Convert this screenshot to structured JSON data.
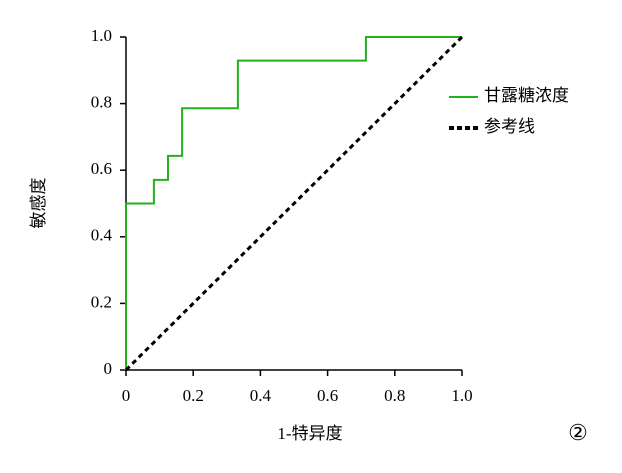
{
  "chart_data": {
    "type": "line",
    "xlabel": "1-特异度",
    "ylabel": "敏感度",
    "annotation": "②",
    "xlim": [
      0,
      1
    ],
    "ylim": [
      0,
      1
    ],
    "xticks": [
      0,
      0.2,
      0.4,
      0.6,
      0.8,
      {
        "value": 1,
        "label": "1.0"
      }
    ],
    "yticks": [
      0,
      0.2,
      0.4,
      0.6,
      0.8,
      {
        "value": 1,
        "label": "1.0"
      }
    ],
    "legend": "right",
    "series": [
      {
        "name": "甘露糖浓度",
        "color": "#22b01c",
        "style": "solid",
        "x": [
          0,
          0,
          0.083,
          0.083,
          0.125,
          0.125,
          0.167,
          0.167,
          0.333,
          0.333,
          0.714,
          0.714,
          1
        ],
        "values": [
          0,
          0.5,
          0.5,
          0.571,
          0.571,
          0.643,
          0.643,
          0.786,
          0.786,
          0.929,
          0.929,
          1,
          1
        ]
      },
      {
        "name": "参考线",
        "color": "#000000",
        "style": "dashed",
        "x": [
          0,
          1
        ],
        "values": [
          0,
          1
        ]
      }
    ]
  }
}
